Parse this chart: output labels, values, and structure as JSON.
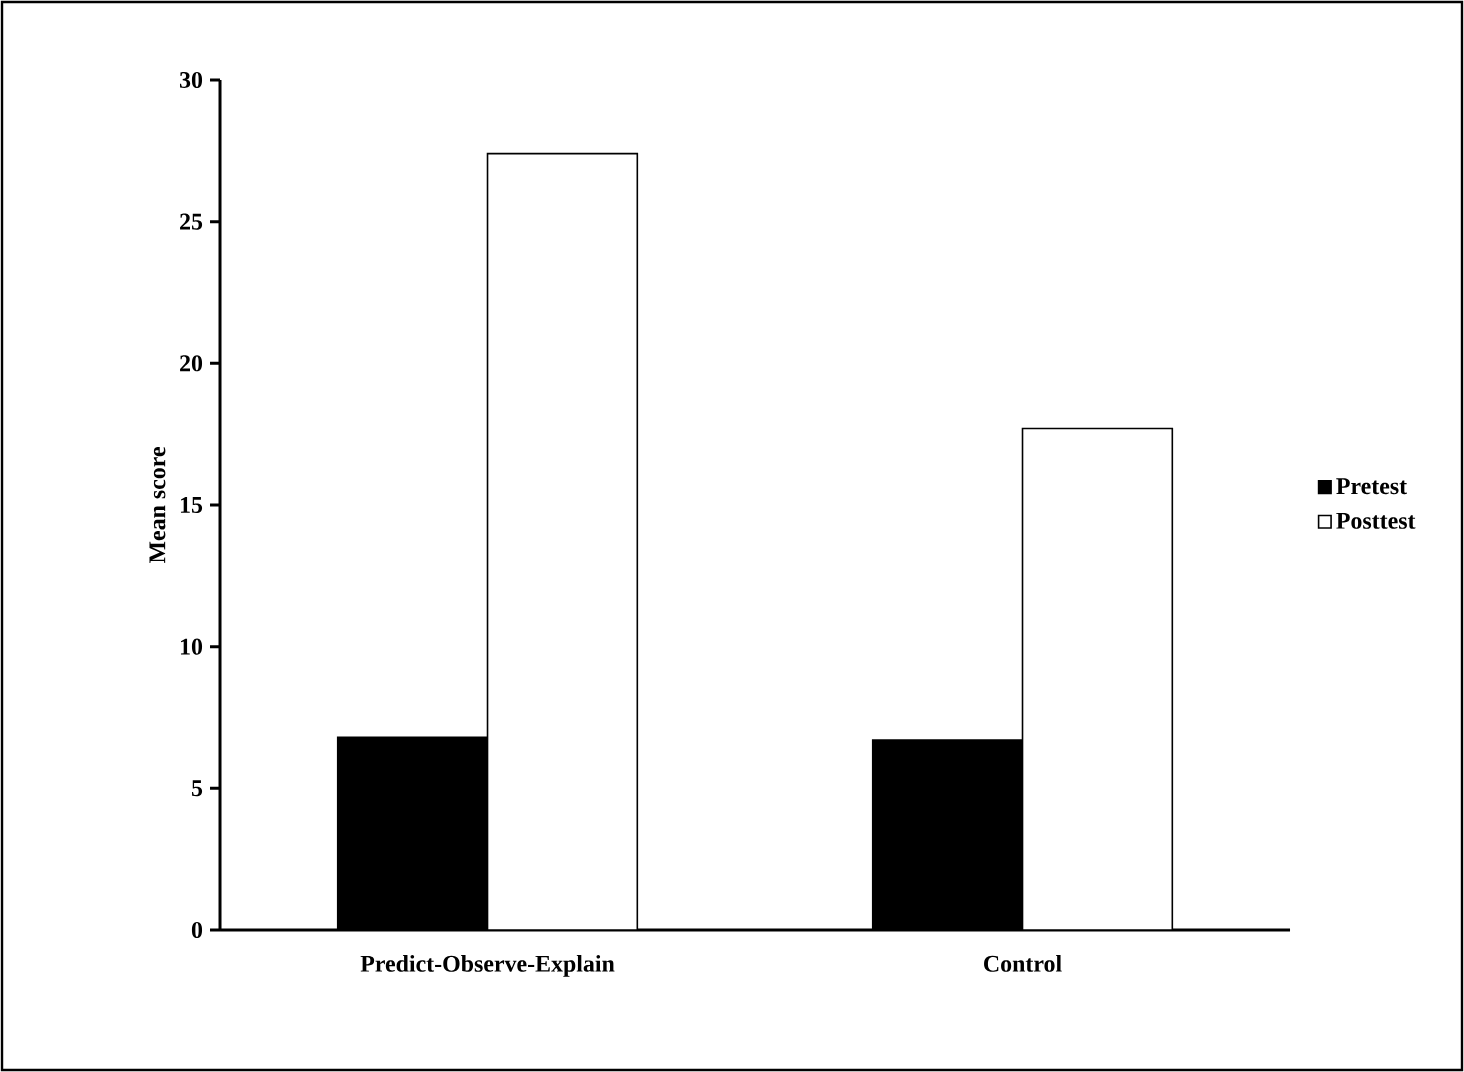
{
  "chart_data": {
    "type": "bar",
    "ylabel": "Mean score",
    "categories": [
      "Predict-Observe-Explain",
      "Control"
    ],
    "series": [
      {
        "name": "Pretest",
        "color": "#000000",
        "values": [
          6.8,
          6.7
        ]
      },
      {
        "name": "Posttest",
        "color": "#ffffff",
        "values": [
          27.4,
          17.7
        ]
      }
    ],
    "ylim": [
      0,
      30
    ],
    "yticks": [
      0,
      5,
      10,
      15,
      20,
      25,
      30
    ],
    "legend": "right"
  }
}
